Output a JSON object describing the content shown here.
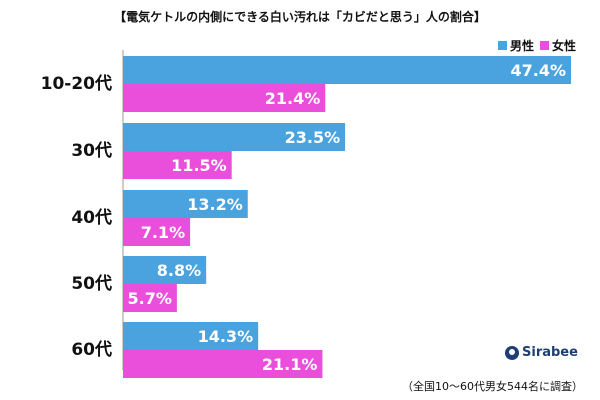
{
  "title": "【電気ケトルの内側にできる白い汚れは「カビだと思う」人の割合】",
  "footnote": "（全国10〜60代男女544名に調査）",
  "logo_text": "Sirabee",
  "colors": {
    "male": "#4aa3df",
    "female": "#ea4fdc"
  },
  "chart_data": {
    "type": "bar",
    "orientation": "horizontal",
    "categories": [
      "10-20代",
      "30代",
      "40代",
      "50代",
      "60代"
    ],
    "series": [
      {
        "name": "男性",
        "values": [
          47.4,
          23.5,
          13.2,
          8.8,
          14.3
        ],
        "labels": [
          "47.4%",
          "23.5%",
          "13.2%",
          "8.8%",
          "14.3%"
        ]
      },
      {
        "name": "女性",
        "values": [
          21.4,
          11.5,
          7.1,
          5.7,
          21.1
        ],
        "labels": [
          "21.4%",
          "11.5%",
          "7.1%",
          "5.7%",
          "21.1%"
        ]
      }
    ],
    "xlim": [
      0,
      47.4
    ],
    "legend": "top-right",
    "grid": false
  }
}
